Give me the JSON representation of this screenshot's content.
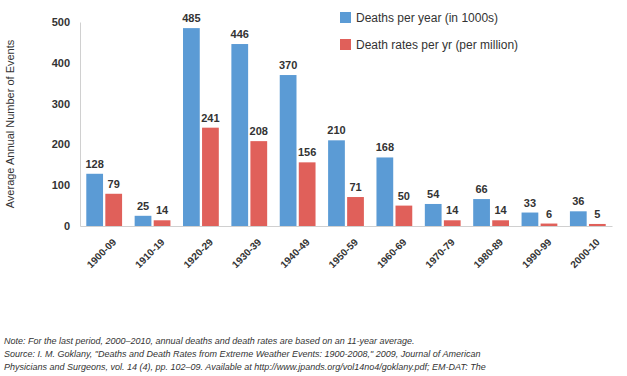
{
  "chart_data": {
    "type": "bar",
    "categories": [
      "1900-09",
      "1910-19",
      "1920-29",
      "1930-39",
      "1940-49",
      "1950-59",
      "1960-69",
      "1970-79",
      "1980-89",
      "1990-99",
      "2000-10"
    ],
    "series": [
      {
        "name": "Deaths per year (in 1000s)",
        "color": "#5b9bd5",
        "values": [
          128,
          25,
          485,
          446,
          370,
          210,
          168,
          54,
          66,
          33,
          36
        ]
      },
      {
        "name": "Death rates per yr (per million)",
        "color": "#e0605a",
        "values": [
          79,
          14,
          241,
          208,
          156,
          71,
          50,
          14,
          14,
          6,
          5
        ]
      }
    ],
    "ylabel": "Average Annual Number of Events",
    "ylim": [
      0,
      500
    ],
    "yticks": [
      0,
      100,
      200,
      300,
      400,
      500
    ],
    "grid": false,
    "legend": "top-right",
    "data_labels": true,
    "annotations": [
      "Note: For the last period, 2000–2010, annual deaths and death rates are based on an 11-year average.",
      "Source: I. M. Goklany, \"Deaths and Death Rates from Extreme Weather Events: 1900-2008,\" 2009, Journal of American",
      "Physicians and Surgeons, vol. 14 (4), pp. 102–09. Available at http://www.jpands.org/vol14no4/goklany.pdf; EM-DAT: The"
    ]
  }
}
